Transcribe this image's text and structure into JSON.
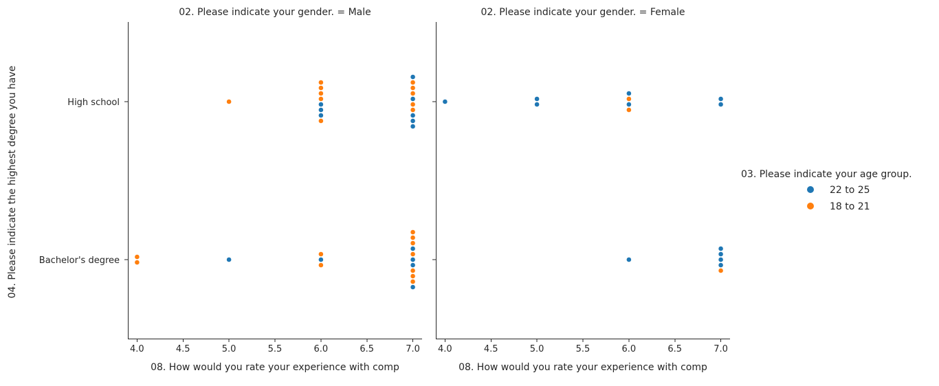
{
  "chart_data": {
    "type": "scatter",
    "kind": "swarm",
    "ylabel": "04. Please indicate the highest degree you have",
    "xlabel": "08. How would you rate your experience with comp",
    "categories": [
      "High school",
      "Bachelor's degree"
    ],
    "xticks": [
      "4.0",
      "4.5",
      "5.0",
      "5.5",
      "6.0",
      "6.5",
      "7.0"
    ],
    "xlim": [
      3.9,
      7.1
    ],
    "legend": {
      "title": "03. Please indicate your age group.",
      "position": "right",
      "entries": [
        {
          "label": "22 to 25",
          "color": "#1f77b4"
        },
        {
          "label": "18 to 21",
          "color": "#ff7f0e"
        }
      ]
    },
    "panels": [
      {
        "title": "02. Please indicate your gender. = Male",
        "groups": [
          {
            "category": "High school",
            "x": 5.0,
            "points": [
              "18 to 21"
            ]
          },
          {
            "category": "High school",
            "x": 6.0,
            "points": [
              "18 to 21",
              "18 to 21",
              "18 to 21",
              "18 to 21",
              "22 to 25",
              "22 to 25",
              "22 to 25",
              "18 to 21"
            ]
          },
          {
            "category": "High school",
            "x": 7.0,
            "points": [
              "22 to 25",
              "18 to 21",
              "18 to 21",
              "18 to 21",
              "22 to 25",
              "18 to 21",
              "18 to 21",
              "22 to 25",
              "22 to 25",
              "22 to 25"
            ]
          },
          {
            "category": "Bachelor's degree",
            "x": 4.0,
            "points": [
              "18 to 21",
              "18 to 21"
            ]
          },
          {
            "category": "Bachelor's degree",
            "x": 5.0,
            "points": [
              "22 to 25"
            ]
          },
          {
            "category": "Bachelor's degree",
            "x": 6.0,
            "points": [
              "18 to 21",
              "22 to 25",
              "18 to 21"
            ]
          },
          {
            "category": "Bachelor's degree",
            "x": 7.0,
            "points": [
              "18 to 21",
              "18 to 21",
              "18 to 21",
              "22 to 25",
              "18 to 21",
              "22 to 25",
              "22 to 25",
              "18 to 21",
              "18 to 21",
              "18 to 21",
              "22 to 25"
            ]
          }
        ]
      },
      {
        "title": "02. Please indicate your gender. = Female",
        "groups": [
          {
            "category": "High school",
            "x": 4.0,
            "points": [
              "22 to 25"
            ]
          },
          {
            "category": "High school",
            "x": 5.0,
            "points": [
              "22 to 25",
              "22 to 25"
            ]
          },
          {
            "category": "High school",
            "x": 6.0,
            "points": [
              "22 to 25",
              "18 to 21",
              "22 to 25",
              "18 to 21"
            ]
          },
          {
            "category": "High school",
            "x": 7.0,
            "points": [
              "22 to 25",
              "22 to 25"
            ]
          },
          {
            "category": "Bachelor's degree",
            "x": 6.0,
            "points": [
              "22 to 25"
            ]
          },
          {
            "category": "Bachelor's degree",
            "x": 7.0,
            "points": [
              "22 to 25",
              "22 to 25",
              "22 to 25",
              "22 to 25",
              "18 to 21"
            ]
          }
        ]
      }
    ]
  }
}
